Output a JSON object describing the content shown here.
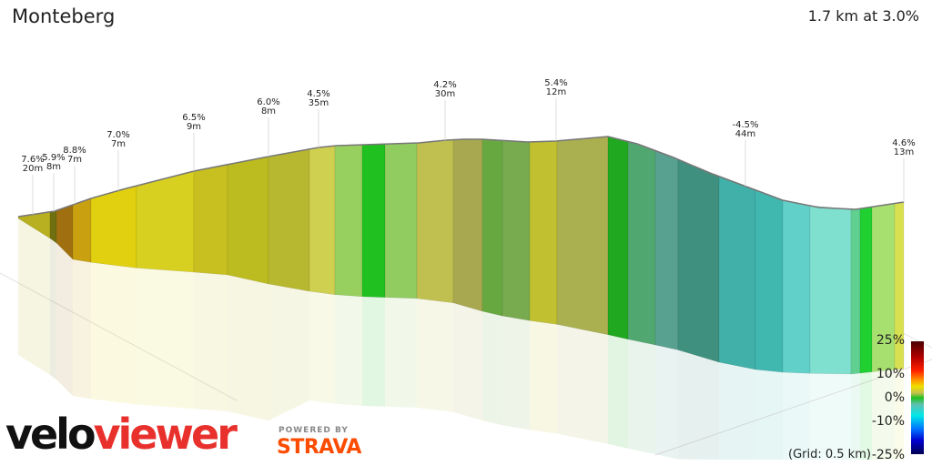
{
  "header": {
    "title": "Monteberg",
    "summary": "1.7 km at 3.0%"
  },
  "chart_data": {
    "type": "area",
    "title": "Monteberg",
    "subtitle": "1.7 km at 3.0%",
    "annotations": [
      {
        "grade": "7.6%",
        "length": "20m"
      },
      {
        "grade": "5.9%",
        "length": "8m"
      },
      {
        "grade": "8.8%",
        "length": "7m"
      },
      {
        "grade": "7.0%",
        "length": "7m"
      },
      {
        "grade": "6.5%",
        "length": "9m"
      },
      {
        "grade": "6.0%",
        "length": "8m"
      },
      {
        "grade": "4.5%",
        "length": "35m"
      },
      {
        "grade": "4.2%",
        "length": "30m"
      },
      {
        "grade": "5.4%",
        "length": "12m"
      },
      {
        "grade": "-4.5%",
        "length": "44m"
      },
      {
        "grade": "4.6%",
        "length": "13m"
      }
    ],
    "legend": {
      "ticks": [
        "25%",
        "10%",
        "0%",
        "-10%",
        "-25%"
      ],
      "grid_note": "(Grid: 0.5 km)",
      "colors": [
        "#4a0000",
        "#ff2000",
        "#f0e000",
        "#20c020",
        "#00e8e8",
        "#0000d0",
        "#000050"
      ]
    }
  },
  "branding": {
    "logo_a": "velo",
    "logo_b": "viewer",
    "powered": "POWERED BY",
    "strava": "STRAVA"
  }
}
